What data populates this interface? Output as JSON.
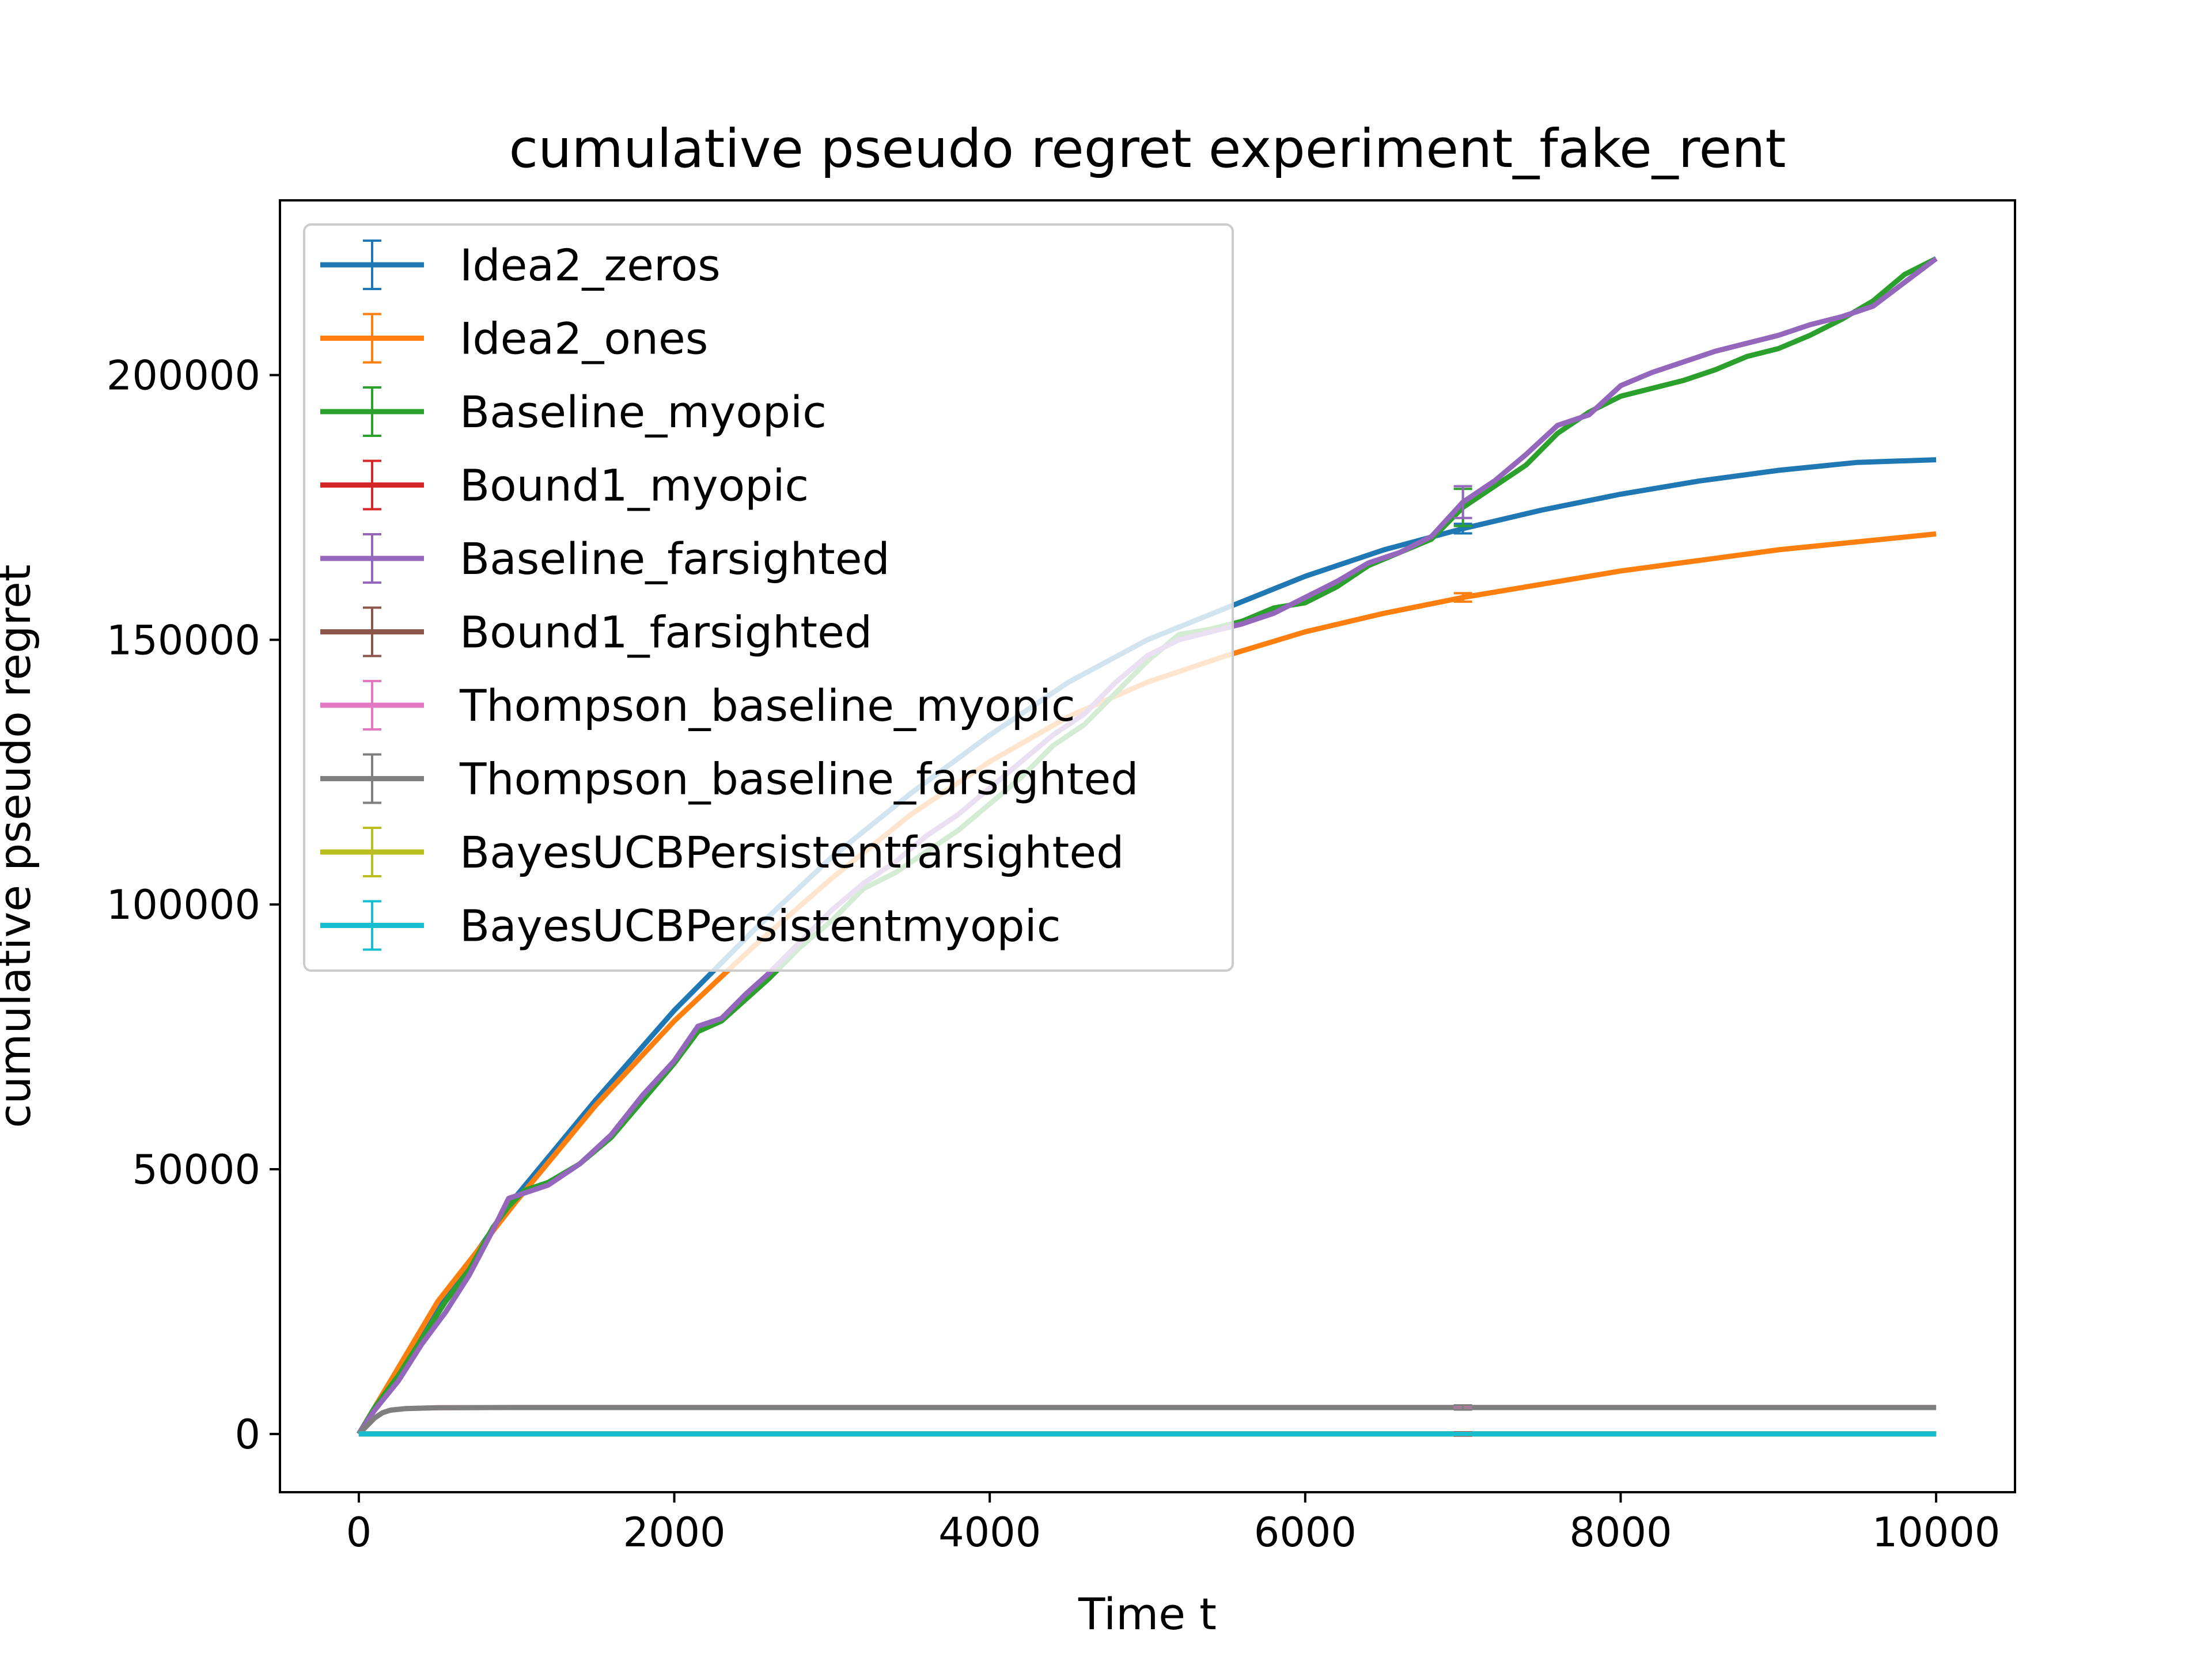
{
  "chart_data": {
    "type": "line",
    "title": "cumulative pseudo regret experiment_fake_rent",
    "xlabel": "Time t",
    "ylabel": "cumulative pseudo regret",
    "xlim": [
      -500,
      10500
    ],
    "ylim": [
      -11000,
      233000
    ],
    "xticks": [
      0,
      2000,
      4000,
      6000,
      8000,
      10000
    ],
    "yticks": [
      0,
      50000,
      100000,
      150000,
      200000
    ],
    "xtick_labels": [
      "0",
      "2000",
      "4000",
      "6000",
      "8000",
      "10000"
    ],
    "ytick_labels": [
      "0",
      "50000",
      "100000",
      "150000",
      "200000"
    ],
    "grid": false,
    "legend": "upper-left",
    "series": [
      {
        "name": "Idea2_zeros",
        "color": "#1f77b4",
        "x": [
          0,
          250,
          500,
          1000,
          1500,
          2000,
          2500,
          3000,
          3500,
          4000,
          4500,
          5000,
          5500,
          6000,
          6500,
          7000,
          7500,
          8000,
          8500,
          9000,
          9500,
          10000
        ],
        "y": [
          0,
          12000,
          24000,
          45000,
          63000,
          80000,
          95000,
          109000,
          121000,
          132000,
          142000,
          150000,
          156000,
          162000,
          167000,
          171000,
          174500,
          177500,
          180000,
          182000,
          183500,
          184000
        ],
        "errorbar_x": 7000,
        "errorbar_y": 171000,
        "errorbar_err": 900
      },
      {
        "name": "Idea2_ones",
        "color": "#ff7f0e",
        "x": [
          0,
          250,
          500,
          1000,
          1500,
          2000,
          2500,
          3000,
          3500,
          4000,
          4500,
          5000,
          5500,
          6000,
          6500,
          7000,
          7500,
          8000,
          8500,
          9000,
          9500,
          10000
        ],
        "y": [
          0,
          12500,
          25000,
          44000,
          62000,
          78000,
          92000,
          105000,
          117000,
          127000,
          135500,
          142000,
          147000,
          151500,
          155000,
          158000,
          160500,
          163000,
          165000,
          167000,
          168500,
          170000
        ],
        "errorbar_x": 7000,
        "errorbar_y": 158000,
        "errorbar_err": 800
      },
      {
        "name": "Baseline_myopic",
        "color": "#2ca02c",
        "x": [
          0,
          100,
          250,
          400,
          550,
          700,
          850,
          950,
          1050,
          1200,
          1400,
          1600,
          1800,
          2000,
          2150,
          2300,
          2450,
          2600,
          2800,
          3000,
          3200,
          3400,
          3600,
          3800,
          4000,
          4200,
          4400,
          4600,
          4800,
          5000,
          5200,
          5400,
          5600,
          5800,
          6000,
          6200,
          6400,
          6600,
          6800,
          7000,
          7200,
          7400,
          7600,
          7800,
          8000,
          8200,
          8400,
          8600,
          8800,
          9000,
          9200,
          9400,
          9600,
          9800,
          10000
        ],
        "y": [
          0,
          5000,
          11000,
          18000,
          25000,
          31000,
          39000,
          43000,
          46000,
          47500,
          51000,
          56000,
          63000,
          70000,
          76000,
          78000,
          82000,
          86000,
          92000,
          97000,
          103000,
          106000,
          110000,
          114000,
          119000,
          124000,
          130000,
          134000,
          140000,
          146000,
          151000,
          152000,
          153500,
          156000,
          157000,
          160000,
          164000,
          166500,
          169000,
          175000,
          179000,
          183000,
          189000,
          193000,
          196000,
          197500,
          199000,
          201000,
          203500,
          205000,
          207500,
          210500,
          214000,
          219000,
          222000
        ],
        "errorbar_x": 7000,
        "errorbar_y": 175000,
        "errorbar_err": 3500
      },
      {
        "name": "Bound1_myopic",
        "color": "#d62728",
        "x": [
          0,
          10000
        ],
        "y": [
          0,
          0
        ],
        "errorbar_x": 7000,
        "errorbar_y": 0,
        "errorbar_err": 300
      },
      {
        "name": "Baseline_farsighted",
        "color": "#9467bd",
        "x": [
          0,
          100,
          250,
          400,
          550,
          700,
          850,
          950,
          1050,
          1200,
          1400,
          1600,
          1800,
          2000,
          2150,
          2300,
          2450,
          2600,
          2800,
          3000,
          3200,
          3400,
          3600,
          3800,
          4000,
          4200,
          4400,
          4600,
          4800,
          5000,
          5200,
          5400,
          5600,
          5800,
          6000,
          6200,
          6400,
          6600,
          6800,
          7000,
          7200,
          7400,
          7600,
          7800,
          8000,
          8200,
          8400,
          8600,
          8800,
          9000,
          9200,
          9400,
          9600,
          9800,
          10000
        ],
        "y": [
          0,
          4500,
          10000,
          17000,
          23000,
          30000,
          38500,
          44500,
          45500,
          47000,
          51000,
          56500,
          64000,
          70500,
          77000,
          78500,
          83000,
          87000,
          93000,
          99000,
          104000,
          108000,
          113000,
          117000,
          122000,
          127000,
          132000,
          136000,
          142000,
          147000,
          150000,
          151500,
          153000,
          155000,
          158000,
          161000,
          164500,
          166500,
          169500,
          176000,
          180000,
          185000,
          190500,
          192500,
          198000,
          200500,
          202500,
          204500,
          206000,
          207500,
          209500,
          211000,
          213000,
          217500,
          222000
        ],
        "errorbar_x": 7000,
        "errorbar_y": 176000,
        "errorbar_err": 3000
      },
      {
        "name": "Bound1_farsighted",
        "color": "#8c564b",
        "x": [
          0,
          10000
        ],
        "y": [
          0,
          0
        ],
        "errorbar_x": 7000,
        "errorbar_y": 0,
        "errorbar_err": 300
      },
      {
        "name": "Thompson_baseline_myopic",
        "color": "#e377c2",
        "x": [
          0,
          50,
          100,
          150,
          200,
          300,
          500,
          1000,
          4000,
          7000,
          10000
        ],
        "y": [
          0,
          1500,
          3000,
          4000,
          4500,
          4800,
          4950,
          5000,
          5000,
          5000,
          5000
        ],
        "errorbar_x": 7000,
        "errorbar_y": 5000,
        "errorbar_err": 300
      },
      {
        "name": "Thompson_baseline_farsighted",
        "color": "#7f7f7f",
        "x": [
          0,
          50,
          100,
          150,
          200,
          300,
          500,
          1000,
          4000,
          7000,
          10000
        ],
        "y": [
          0,
          1500,
          3000,
          4000,
          4500,
          4800,
          4950,
          5000,
          5000,
          5000,
          5000
        ],
        "errorbar_x": 7000,
        "errorbar_y": 5000,
        "errorbar_err": 400
      },
      {
        "name": "BayesUCBPersistentfarsighted",
        "color": "#bcbd22",
        "x": [
          0,
          10000
        ],
        "y": [
          0,
          0
        ],
        "errorbar_x": 7000,
        "errorbar_y": 0,
        "errorbar_err": 200
      },
      {
        "name": "BayesUCBPersistentmyopic",
        "color": "#17becf",
        "x": [
          0,
          10000
        ],
        "y": [
          0,
          0
        ],
        "errorbar_x": 7000,
        "errorbar_y": 0,
        "errorbar_err": 200
      }
    ]
  }
}
